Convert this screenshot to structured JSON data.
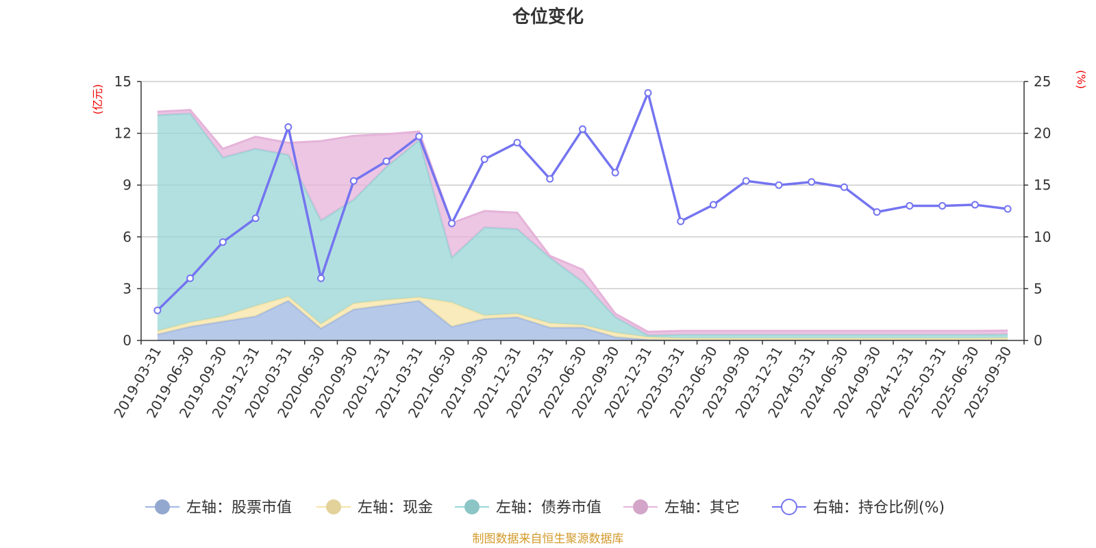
{
  "chart_data": {
    "type": "area",
    "title": "仓位变化",
    "source": "制图数据来自恒生聚源数据库",
    "left_axis": {
      "unit": "(亿元)",
      "ylim": [
        0,
        15
      ],
      "ticks": [
        "0",
        "3",
        "6",
        "9",
        "12",
        "15"
      ]
    },
    "right_axis": {
      "unit": "(%)",
      "ylim": [
        0,
        25
      ],
      "ticks": [
        "0",
        "5",
        "10",
        "15",
        "20",
        "25"
      ]
    },
    "grid": true,
    "legend_position": "bottom",
    "categories": [
      "2019-03-31",
      "2019-06-30",
      "2019-09-30",
      "2019-12-31",
      "2020-03-31",
      "2020-06-30",
      "2020-09-30",
      "2020-12-31",
      "2021-03-31",
      "2021-06-30",
      "2021-09-30",
      "2021-12-31",
      "2022-03-31",
      "2022-06-30",
      "2022-09-30",
      "2022-12-31",
      "2023-03-31",
      "2023-06-30",
      "2023-09-30",
      "2023-12-31",
      "2024-03-31",
      "2024-06-30",
      "2024-09-30",
      "2024-12-31",
      "2025-03-31",
      "2025-06-30",
      "2025-09-30"
    ],
    "series": [
      {
        "name": "左轴：股票市值",
        "axis": "left",
        "kind": "stacked-area",
        "color": "#9fb7e1",
        "values": [
          0.35,
          0.8,
          1.1,
          1.4,
          2.3,
          0.7,
          1.8,
          2.05,
          2.3,
          0.8,
          1.25,
          1.35,
          0.75,
          0.75,
          0.2,
          0.05,
          0.03,
          0.03,
          0.03,
          0.03,
          0.03,
          0.03,
          0.03,
          0.03,
          0.03,
          0.03,
          0.03
        ]
      },
      {
        "name": "左轴：现金",
        "axis": "left",
        "kind": "stacked-area",
        "color": "#f7e4a6",
        "values": [
          0.2,
          0.25,
          0.3,
          0.6,
          0.25,
          0.25,
          0.35,
          0.3,
          0.2,
          1.4,
          0.2,
          0.2,
          0.25,
          0.15,
          0.25,
          0.15,
          0.1,
          0.1,
          0.1,
          0.1,
          0.1,
          0.1,
          0.1,
          0.1,
          0.1,
          0.1,
          0.12
        ]
      },
      {
        "name": "左轴：债券市值",
        "axis": "left",
        "kind": "stacked-area",
        "color": "#98d6d6",
        "values": [
          12.5,
          12.1,
          9.2,
          9.1,
          8.2,
          6.0,
          6.0,
          7.7,
          9.1,
          2.6,
          5.1,
          4.9,
          3.8,
          2.5,
          0.9,
          0.1,
          0.2,
          0.2,
          0.2,
          0.2,
          0.2,
          0.2,
          0.2,
          0.2,
          0.2,
          0.2,
          0.2
        ]
      },
      {
        "name": "左轴：其它",
        "axis": "left",
        "kind": "stacked-area",
        "color": "#e5b3d9",
        "values": [
          0.2,
          0.2,
          0.5,
          0.7,
          0.7,
          4.6,
          3.7,
          1.9,
          0.5,
          2.0,
          0.95,
          0.95,
          0.1,
          0.7,
          0.2,
          0.2,
          0.22,
          0.22,
          0.22,
          0.22,
          0.22,
          0.22,
          0.22,
          0.22,
          0.22,
          0.22,
          0.22
        ]
      },
      {
        "name": "右轴：持仓比例(%)",
        "axis": "right",
        "kind": "line",
        "color": "#7474f0",
        "values": [
          2.9,
          6.0,
          9.5,
          11.8,
          20.6,
          6.0,
          15.4,
          17.3,
          19.7,
          11.3,
          17.5,
          19.1,
          15.6,
          20.4,
          16.2,
          23.9,
          11.5,
          13.1,
          15.4,
          15.0,
          15.3,
          14.8,
          12.4,
          13.0,
          13.0,
          13.1,
          12.7
        ]
      }
    ]
  }
}
